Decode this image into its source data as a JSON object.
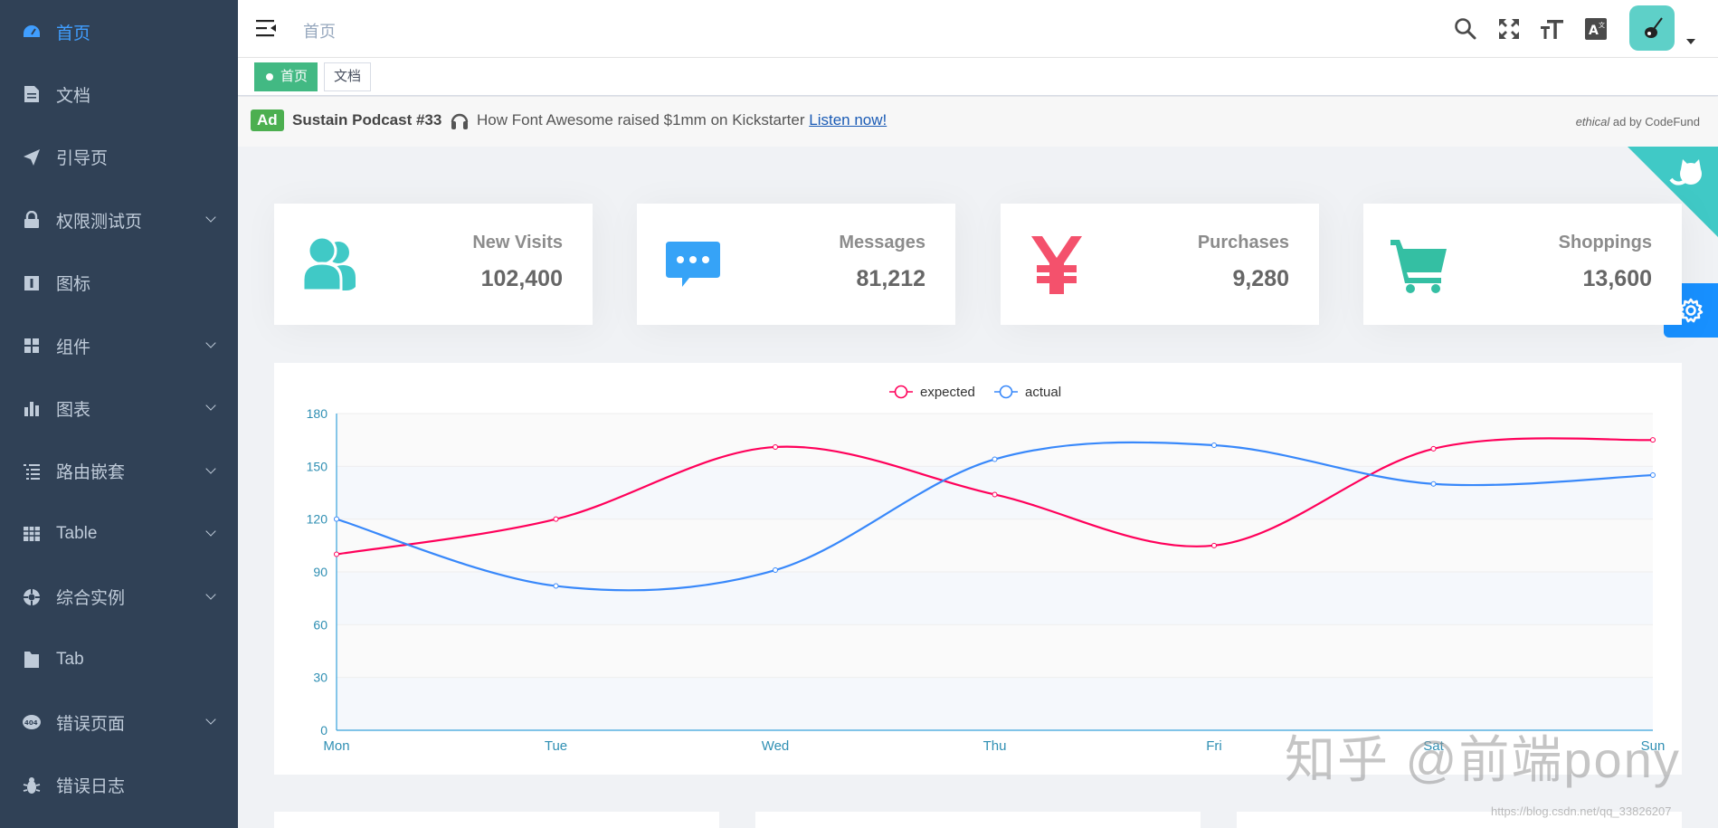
{
  "sidebar": {
    "items": [
      {
        "label": "首页",
        "icon": "dashboard-icon",
        "active": true,
        "arrow": false
      },
      {
        "label": "文档",
        "icon": "document-icon",
        "active": false,
        "arrow": false
      },
      {
        "label": "引导页",
        "icon": "guide-icon",
        "active": false,
        "arrow": false
      },
      {
        "label": "权限测试页",
        "icon": "lock-icon",
        "active": false,
        "arrow": true
      },
      {
        "label": "图标",
        "icon": "icon-icon",
        "active": false,
        "arrow": false
      },
      {
        "label": "组件",
        "icon": "component-icon",
        "active": false,
        "arrow": true
      },
      {
        "label": "图表",
        "icon": "chart-icon",
        "active": false,
        "arrow": true
      },
      {
        "label": "路由嵌套",
        "icon": "nested-icon",
        "active": false,
        "arrow": true
      },
      {
        "label": "Table",
        "icon": "table-icon",
        "active": false,
        "arrow": true
      },
      {
        "label": "综合实例",
        "icon": "example-icon",
        "active": false,
        "arrow": true
      },
      {
        "label": "Tab",
        "icon": "tab-icon",
        "active": false,
        "arrow": false
      },
      {
        "label": "错误页面",
        "icon": "404-icon",
        "active": false,
        "arrow": true
      },
      {
        "label": "错误日志",
        "icon": "bug-icon",
        "active": false,
        "arrow": false
      }
    ]
  },
  "header": {
    "breadcrumb": "首页",
    "icons": [
      "search-icon",
      "fullscreen-icon",
      "font-size-icon",
      "language-icon"
    ]
  },
  "tags": [
    {
      "label": "首页",
      "active": true
    },
    {
      "label": "文档",
      "active": false
    }
  ],
  "ad": {
    "badge": "Ad",
    "title": "Sustain Podcast #33",
    "text": "How Font Awesome raised $1mm on Kickstarter",
    "link": "Listen now!",
    "credit_prefix": "ethical",
    "credit": " ad by CodeFund"
  },
  "panels": [
    {
      "title": "New Visits",
      "value": "102,400",
      "icon": "peoples-icon",
      "color": "#40c9c6"
    },
    {
      "title": "Messages",
      "value": "81,212",
      "icon": "message-icon",
      "color": "#36a3f7"
    },
    {
      "title": "Purchases",
      "value": "9,280",
      "icon": "money-icon",
      "color": "#f4516c"
    },
    {
      "title": "Shoppings",
      "value": "13,600",
      "icon": "shopping-icon",
      "color": "#34bfa3"
    }
  ],
  "chart_data": {
    "type": "line",
    "categories": [
      "Mon",
      "Tue",
      "Wed",
      "Thu",
      "Fri",
      "Sat",
      "Sun"
    ],
    "series": [
      {
        "name": "expected",
        "values": [
          100,
          120,
          161,
          134,
          105,
          160,
          165
        ],
        "color": "#ff005a"
      },
      {
        "name": "actual",
        "values": [
          120,
          82,
          91,
          154,
          162,
          140,
          145
        ],
        "color": "#3888fa"
      }
    ],
    "ylim": [
      0,
      180
    ],
    "yticks": [
      "0",
      "30",
      "60",
      "90",
      "120",
      "150",
      "180"
    ],
    "legend": "top-center",
    "grid": true
  },
  "watermark": "知乎 @前端pony",
  "watermark_url": "https://blog.csdn.net/qq_33826207"
}
